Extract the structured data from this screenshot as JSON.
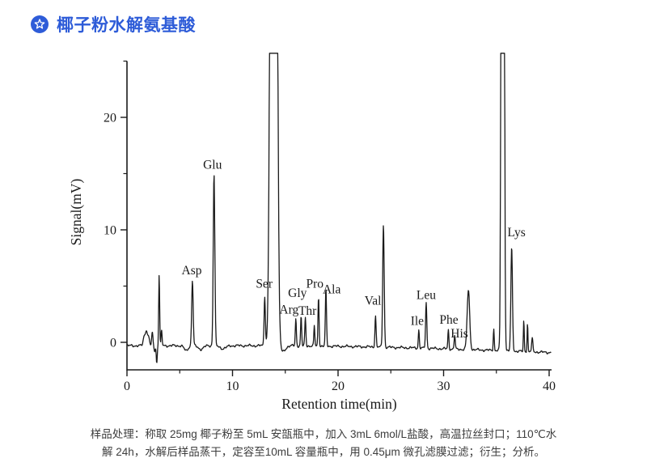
{
  "header": {
    "title": "椰子粉水解氨基酸",
    "icon": "star-badge-icon",
    "accent_color": "#2e5cd8"
  },
  "caption": {
    "line1": "样品处理：称取 25mg 椰子粉至 5mL 安瓿瓶中，加入 3mL 6mol/L盐酸，高温拉丝封口；110℃水",
    "line2": "解 24h，水解后样品蒸干，定容至10mL 容量瓶中，用 0.45μm 微孔滤膜过滤；衍生；分析。"
  },
  "chart_data": {
    "type": "line",
    "title": "",
    "xlabel": "Retention time(min)",
    "ylabel": "Signal(mV)",
    "xlim": [
      0,
      40.2
    ],
    "ylim": [
      -2.5,
      25
    ],
    "grid": false,
    "legend": "none",
    "line_color": "#1a1a1a",
    "axis_color": "#1a1a1a",
    "x_major_ticks": [
      0,
      10,
      20,
      30,
      40
    ],
    "x_minor_ticks": [
      5,
      15,
      25,
      35
    ],
    "y_major_ticks": [
      0,
      10,
      20
    ],
    "y_minor_ticks": [
      5,
      15,
      25
    ],
    "baseline_mV": -0.3,
    "baseline_end_mV": -0.9,
    "peaks": [
      {
        "name": "",
        "time_min": 1.65,
        "apex_mV": 0.6,
        "width_min": 0.1
      },
      {
        "name": "",
        "time_min": 1.85,
        "apex_mV": 1.0,
        "width_min": 0.08
      },
      {
        "name": "",
        "time_min": 2.05,
        "apex_mV": 0.5,
        "width_min": 0.08
      },
      {
        "name": "",
        "time_min": 2.4,
        "apex_mV": 0.8,
        "width_min": 0.06
      },
      {
        "name": "",
        "time_min": 2.62,
        "apex_mV": -0.8,
        "width_min": 0.05
      },
      {
        "name": "",
        "time_min": 2.82,
        "apex_mV": -1.9,
        "width_min": 0.045
      },
      {
        "name": "",
        "time_min": 3.05,
        "apex_mV": 6.0,
        "width_min": 0.045
      },
      {
        "name": "",
        "time_min": 3.28,
        "apex_mV": 1.0,
        "width_min": 0.05
      },
      {
        "name": "",
        "time_min": 5.6,
        "apex_mV": -0.75,
        "width_min": 0.18
      },
      {
        "name": "Asp",
        "time_min": 6.2,
        "apex_mV": 5.5,
        "width_min": 0.07
      },
      {
        "name": "",
        "time_min": 7.0,
        "apex_mV": -0.6,
        "width_min": 0.25
      },
      {
        "name": "Glu",
        "time_min": 8.25,
        "apex_mV": 15.0,
        "width_min": 0.075
      },
      {
        "name": "",
        "time_min": 9.1,
        "apex_mV": -0.55,
        "width_min": 0.3
      },
      {
        "name": "Ser",
        "time_min": 13.05,
        "apex_mV": 4.1,
        "width_min": 0.06
      },
      {
        "name": "",
        "time_min": 13.9,
        "apex_mV": 26,
        "width_min": 0.2,
        "clipped": true
      },
      {
        "name": "",
        "time_min": 14.75,
        "apex_mV": -0.85,
        "width_min": 0.25
      },
      {
        "name": "Arg",
        "time_min": 16.0,
        "apex_mV": 2.1,
        "width_min": 0.05
      },
      {
        "name": "Thr",
        "time_min": 16.5,
        "apex_mV": 2.3,
        "width_min": 0.05
      },
      {
        "name": "Gly",
        "time_min": 16.9,
        "apex_mV": 2.2,
        "width_min": 0.05
      },
      {
        "name": "",
        "time_min": 17.75,
        "apex_mV": 1.5,
        "width_min": 0.045
      },
      {
        "name": "Pro",
        "time_min": 18.15,
        "apex_mV": 4.1,
        "width_min": 0.05
      },
      {
        "name": "Ala",
        "time_min": 18.85,
        "apex_mV": 4.7,
        "width_min": 0.055
      },
      {
        "name": "Val",
        "time_min": 23.55,
        "apex_mV": 2.4,
        "width_min": 0.055
      },
      {
        "name": "",
        "time_min": 24.3,
        "apex_mV": 10.5,
        "width_min": 0.07
      },
      {
        "name": "Ile",
        "time_min": 27.65,
        "apex_mV": 1.1,
        "width_min": 0.05
      },
      {
        "name": "Leu",
        "time_min": 28.35,
        "apex_mV": 3.5,
        "width_min": 0.06
      },
      {
        "name": "Phe",
        "time_min": 30.45,
        "apex_mV": 1.1,
        "width_min": 0.05
      },
      {
        "name": "His",
        "time_min": 31.05,
        "apex_mV": 0.65,
        "width_min": 0.05
      },
      {
        "name": "",
        "time_min": 32.35,
        "apex_mV": 4.6,
        "width_min": 0.12
      },
      {
        "name": "",
        "time_min": 34.75,
        "apex_mV": 1.2,
        "width_min": 0.045
      },
      {
        "name": "",
        "time_min": 35.6,
        "apex_mV": 26,
        "width_min": 0.095,
        "clipped": true
      },
      {
        "name": "Lys",
        "time_min": 36.45,
        "apex_mV": 8.4,
        "width_min": 0.075
      },
      {
        "name": "",
        "time_min": 37.6,
        "apex_mV": 1.9,
        "width_min": 0.04
      },
      {
        "name": "",
        "time_min": 37.95,
        "apex_mV": 1.7,
        "width_min": 0.04
      },
      {
        "name": "",
        "time_min": 38.4,
        "apex_mV": 0.3,
        "width_min": 0.06
      }
    ],
    "peak_labels": [
      {
        "text": "Asp",
        "t": 6.13,
        "v": 6.4
      },
      {
        "text": "Glu",
        "t": 8.1,
        "v": 15.8
      },
      {
        "text": "Ser",
        "t": 13.0,
        "v": 5.2
      },
      {
        "text": "Arg",
        "t": 15.35,
        "v": 2.9
      },
      {
        "text": "Gly",
        "t": 16.15,
        "v": 4.4
      },
      {
        "text": "Thr",
        "t": 17.1,
        "v": 2.8
      },
      {
        "text": "Pro",
        "t": 17.8,
        "v": 5.2
      },
      {
        "text": "Ala",
        "t": 19.4,
        "v": 4.7
      },
      {
        "text": "Val",
        "t": 23.3,
        "v": 3.7
      },
      {
        "text": "Ile",
        "t": 27.5,
        "v": 1.9
      },
      {
        "text": "Leu",
        "t": 28.35,
        "v": 4.2
      },
      {
        "text": "Phe",
        "t": 30.5,
        "v": 2.0
      },
      {
        "text": "His",
        "t": 31.5,
        "v": 0.8
      },
      {
        "text": "Lys",
        "t": 36.9,
        "v": 9.8
      }
    ]
  }
}
